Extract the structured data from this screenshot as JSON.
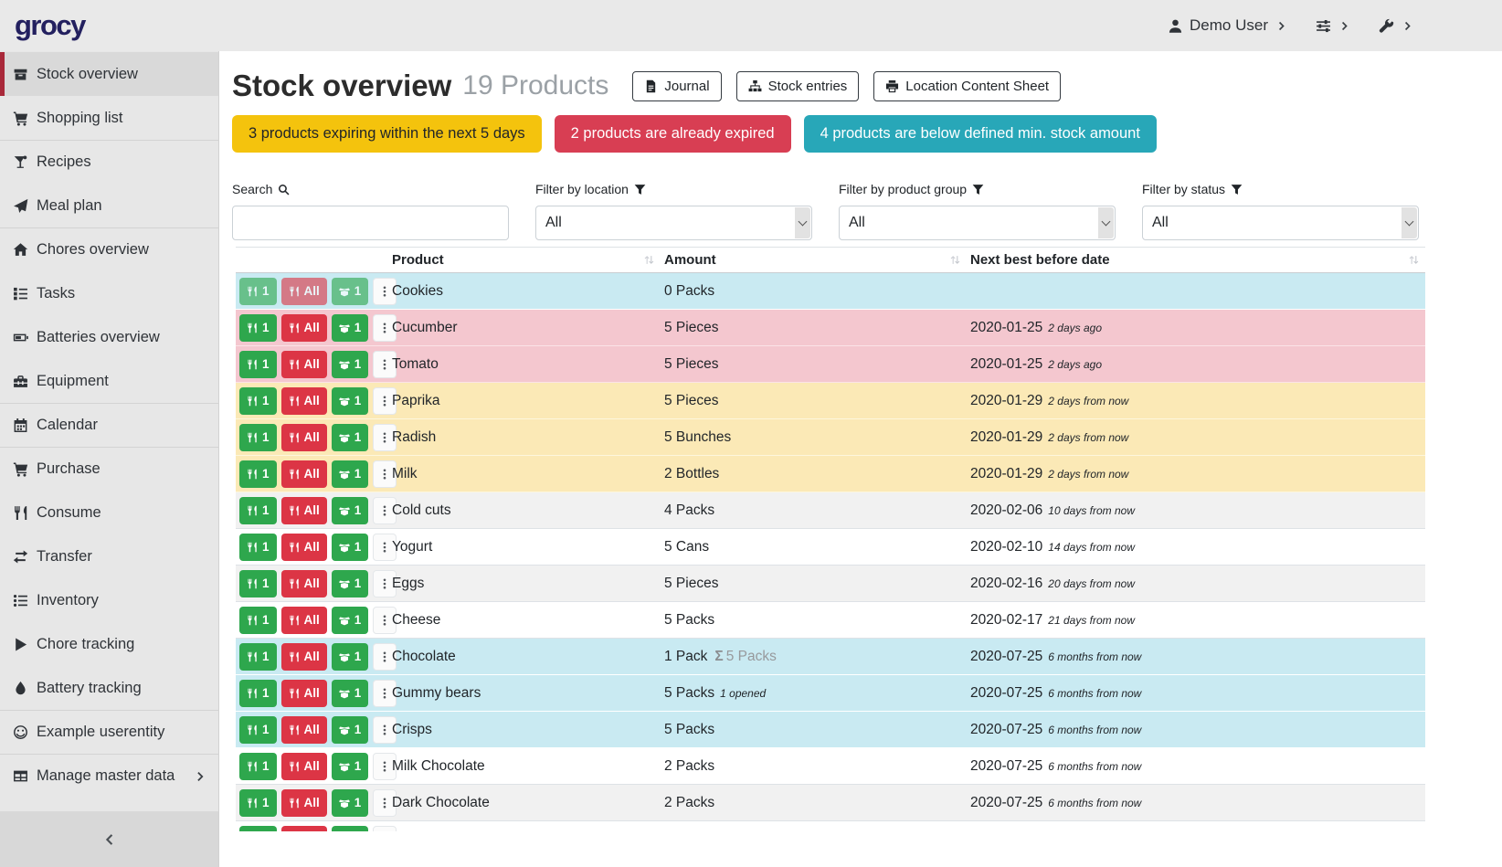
{
  "colors": {
    "accent_red": "#a9293a",
    "logo": "#23205f",
    "alert_warning": "#f4c30d",
    "alert_danger": "#d83e53",
    "alert_info": "#28a7b8",
    "row_info": "#c9eaf2",
    "row_danger": "#f4c7cf",
    "row_warning": "#fbe9b6",
    "btn_success": "#2ea74d",
    "btn_danger": "#dc3545"
  },
  "navbar": {
    "logo": "grocy",
    "user": {
      "icon": "person-icon",
      "label": "Demo User",
      "chevron": "chevron-right-icon"
    },
    "menus": [
      {
        "name": "settings-menu",
        "icon": "sliders-icon",
        "chevron": "chevron-right-icon"
      },
      {
        "name": "admin-menu",
        "icon": "wrench-icon",
        "chevron": "chevron-right-icon"
      }
    ]
  },
  "sidebar": {
    "items": [
      {
        "label": "Stock overview",
        "icon": "box-icon",
        "active": true
      },
      {
        "label": "Shopping list",
        "icon": "cart-icon"
      },
      {
        "label": "Recipes",
        "icon": "cocktail-icon",
        "divider": true
      },
      {
        "label": "Meal plan",
        "icon": "paper-plane-icon"
      },
      {
        "label": "Chores overview",
        "icon": "home-icon",
        "divider": true
      },
      {
        "label": "Tasks",
        "icon": "tasks-icon"
      },
      {
        "label": "Batteries overview",
        "icon": "battery-icon"
      },
      {
        "label": "Equipment",
        "icon": "toolbox-icon"
      },
      {
        "label": "Calendar",
        "icon": "calendar-icon",
        "divider": true
      },
      {
        "label": "Purchase",
        "icon": "cart-icon",
        "divider": true
      },
      {
        "label": "Consume",
        "icon": "utensils-icon"
      },
      {
        "label": "Transfer",
        "icon": "exchange-icon"
      },
      {
        "label": "Inventory",
        "icon": "list-icon"
      },
      {
        "label": "Chore tracking",
        "icon": "play-icon"
      },
      {
        "label": "Battery tracking",
        "icon": "drop-icon"
      },
      {
        "label": "Example userentity",
        "icon": "smile-icon",
        "divider": true
      },
      {
        "label": "Manage master data",
        "icon": "table-icon",
        "divider": true,
        "trailing": "chevron-right-icon"
      }
    ],
    "collapse_icon": "chevron-left-icon"
  },
  "header": {
    "title": "Stock overview",
    "count": "19 Products",
    "buttons": [
      {
        "label": "Journal",
        "icon": "file-icon"
      },
      {
        "label": "Stock entries",
        "icon": "sitemap-icon"
      },
      {
        "label": "Location Content Sheet",
        "icon": "print-icon"
      }
    ]
  },
  "alerts": [
    {
      "text": "3 products expiring within the next 5 days",
      "kind": "warning"
    },
    {
      "text": "2 products are already expired",
      "kind": "danger"
    },
    {
      "text": "4 products are below defined min. stock amount",
      "kind": "info"
    }
  ],
  "filters": {
    "search": {
      "label": "Search",
      "icon": "search-icon",
      "value": ""
    },
    "selects": [
      {
        "label": "Filter by location",
        "icon": "filter-icon",
        "value": "All"
      },
      {
        "label": "Filter by product group",
        "icon": "filter-icon",
        "value": "All"
      },
      {
        "label": "Filter by status",
        "icon": "filter-icon",
        "value": "All"
      }
    ]
  },
  "table": {
    "columns": [
      {
        "label": "Product",
        "sortable": true
      },
      {
        "label": "Amount",
        "sortable": true
      },
      {
        "label": "Next best before date",
        "sortable": true
      }
    ],
    "actions": {
      "consume_one": "1",
      "consume_all": "All",
      "open_one": "1"
    },
    "sum_prefix": "Σ",
    "rows": [
      {
        "product": "Cookies",
        "amount": "0 Packs",
        "sum": "",
        "note": "",
        "date": "",
        "date_rel": "",
        "status": "info",
        "disabled": true
      },
      {
        "product": "Cucumber",
        "amount": "5 Pieces",
        "sum": "",
        "note": "",
        "date": "2020-01-25",
        "date_rel": "2 days ago",
        "status": "danger",
        "disabled": false
      },
      {
        "product": "Tomato",
        "amount": "5 Pieces",
        "sum": "",
        "note": "",
        "date": "2020-01-25",
        "date_rel": "2 days ago",
        "status": "danger",
        "disabled": false
      },
      {
        "product": "Paprika",
        "amount": "5 Pieces",
        "sum": "",
        "note": "",
        "date": "2020-01-29",
        "date_rel": "2 days from now",
        "status": "warning",
        "disabled": false
      },
      {
        "product": "Radish",
        "amount": "5 Bunches",
        "sum": "",
        "note": "",
        "date": "2020-01-29",
        "date_rel": "2 days from now",
        "status": "warning",
        "disabled": false
      },
      {
        "product": "Milk",
        "amount": "2 Bottles",
        "sum": "",
        "note": "",
        "date": "2020-01-29",
        "date_rel": "2 days from now",
        "status": "warning",
        "disabled": false
      },
      {
        "product": "Cold cuts",
        "amount": "4 Packs",
        "sum": "",
        "note": "",
        "date": "2020-02-06",
        "date_rel": "10 days from now",
        "status": "stripe",
        "disabled": false
      },
      {
        "product": "Yogurt",
        "amount": "5 Cans",
        "sum": "",
        "note": "",
        "date": "2020-02-10",
        "date_rel": "14 days from now",
        "status": "plain",
        "disabled": false
      },
      {
        "product": "Eggs",
        "amount": "5 Pieces",
        "sum": "",
        "note": "",
        "date": "2020-02-16",
        "date_rel": "20 days from now",
        "status": "stripe",
        "disabled": false
      },
      {
        "product": "Cheese",
        "amount": "5 Packs",
        "sum": "",
        "note": "",
        "date": "2020-02-17",
        "date_rel": "21 days from now",
        "status": "plain",
        "disabled": false
      },
      {
        "product": "Chocolate",
        "amount": "1 Pack",
        "sum": "5 Packs",
        "note": "",
        "date": "2020-07-25",
        "date_rel": "6 months from now",
        "status": "info",
        "disabled": false
      },
      {
        "product": "Gummy bears",
        "amount": "5 Packs",
        "sum": "",
        "note": "1 opened",
        "date": "2020-07-25",
        "date_rel": "6 months from now",
        "status": "info",
        "disabled": false
      },
      {
        "product": "Crisps",
        "amount": "5 Packs",
        "sum": "",
        "note": "",
        "date": "2020-07-25",
        "date_rel": "6 months from now",
        "status": "info",
        "disabled": false
      },
      {
        "product": "Milk Chocolate",
        "amount": "2 Packs",
        "sum": "",
        "note": "",
        "date": "2020-07-25",
        "date_rel": "6 months from now",
        "status": "plain",
        "disabled": false
      },
      {
        "product": "Dark Chocolate",
        "amount": "2 Packs",
        "sum": "",
        "note": "",
        "date": "2020-07-25",
        "date_rel": "6 months from now",
        "status": "stripe",
        "disabled": false
      },
      {
        "product": "",
        "amount": "",
        "sum": "",
        "note": "",
        "date": "",
        "date_rel": "",
        "status": "plain",
        "disabled": false
      }
    ]
  }
}
